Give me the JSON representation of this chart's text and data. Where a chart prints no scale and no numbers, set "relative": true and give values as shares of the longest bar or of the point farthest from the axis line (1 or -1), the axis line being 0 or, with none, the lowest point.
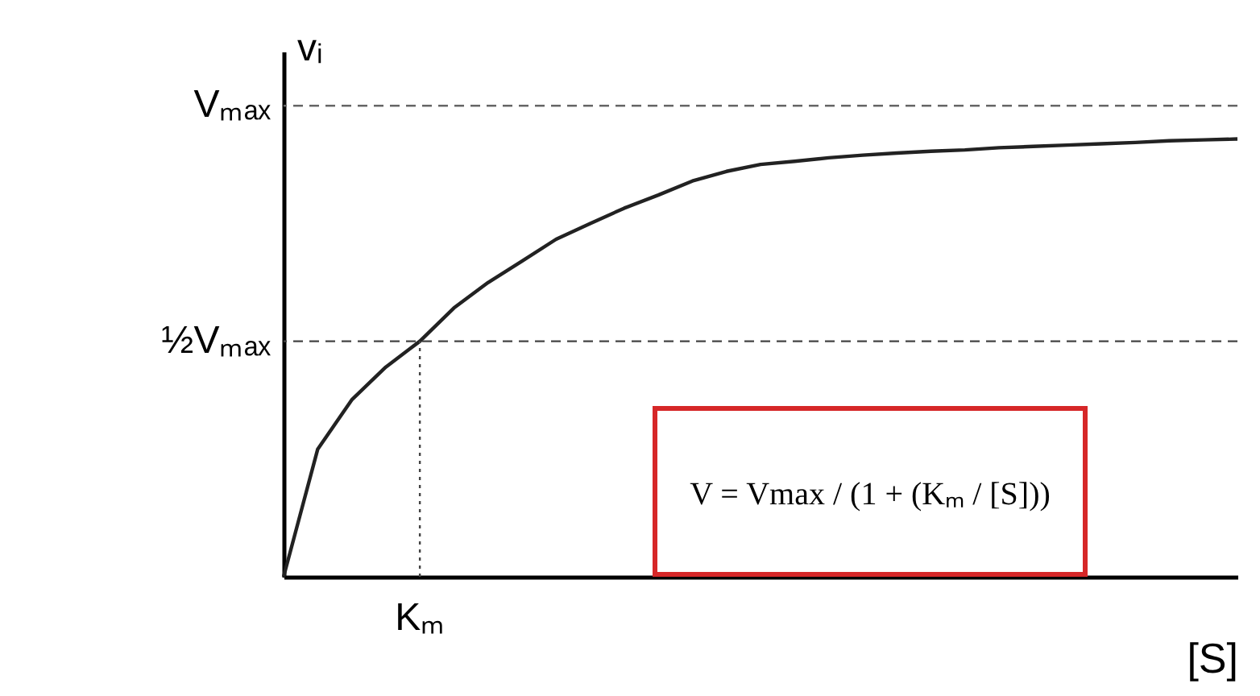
{
  "chart_data": {
    "type": "line",
    "ylabel": "vᵢ",
    "xlabel": "[S]",
    "categories": [
      null,
      null,
      null,
      null,
      null,
      null,
      null,
      null,
      null,
      null,
      null,
      null,
      null,
      null,
      null,
      null,
      null,
      null,
      null,
      null,
      null,
      null,
      null,
      null,
      null,
      null,
      null,
      null,
      null
    ],
    "series": [
      {
        "color": "#222222",
        "values": [
          0,
          0.291,
          0.404,
          0.479,
          0.538,
          0.614,
          0.672,
          0.721,
          0.771,
          0.807,
          0.842,
          0.872,
          0.904,
          0.926,
          0.942,
          0.949,
          0.957,
          0.963,
          0.968,
          0.972,
          0.975,
          0.98,
          0.983,
          0.986,
          0.989,
          0.992,
          0.996,
          0.998,
          1
        ]
      }
    ],
    "relative": true,
    "ref_lines": [
      {
        "axis": "y",
        "value": 1.076,
        "label": "Vₘₐₓ",
        "color": "#666666",
        "line_style": "dashed"
      },
      {
        "axis": "y",
        "value": 0.538,
        "label": "½Vₘₐₓ",
        "color": "#444444",
        "line_style": "dashed"
      }
    ],
    "annotations": [
      {
        "text": "Kₘ",
        "y": 0.538
      },
      "V = Vmax / (1 + (Kₘ / [S]))"
    ],
    "grid": false,
    "marker": "none",
    "line_style": "solid"
  }
}
